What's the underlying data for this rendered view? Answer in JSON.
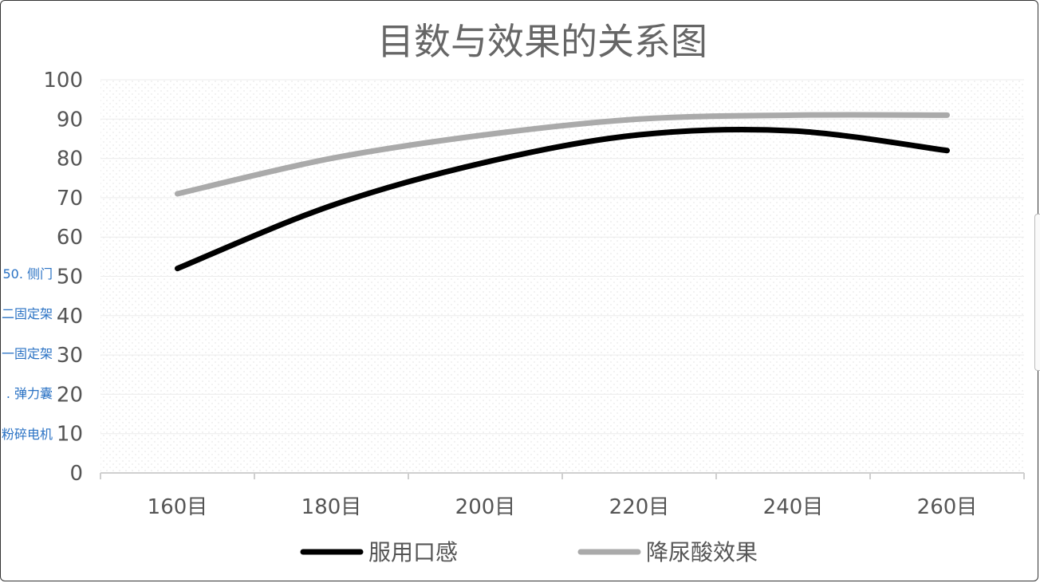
{
  "side_links": [
    "50. 侧门",
    "二固定架",
    "一固定架",
    ". 弹力囊",
    "粉碎电机"
  ],
  "chart_data": {
    "type": "line",
    "title": "目数与效果的关系图",
    "xlabel": "",
    "ylabel": "",
    "categories": [
      "160目",
      "180目",
      "200目",
      "220目",
      "240目",
      "260目"
    ],
    "ylim": [
      0,
      100
    ],
    "yticks": [
      "0",
      "10",
      "20",
      "30",
      "40",
      "50",
      "60",
      "70",
      "80",
      "90",
      "100"
    ],
    "grid": true,
    "smooth": true,
    "legend_position": "bottom",
    "series": [
      {
        "name": "服用口感",
        "values": [
          52,
          68,
          79,
          86,
          87,
          82
        ],
        "color": "#000000"
      },
      {
        "name": "降尿酸效果",
        "values": [
          71,
          80,
          86,
          90,
          91,
          91
        ],
        "color": "#aaaaaa"
      }
    ]
  }
}
